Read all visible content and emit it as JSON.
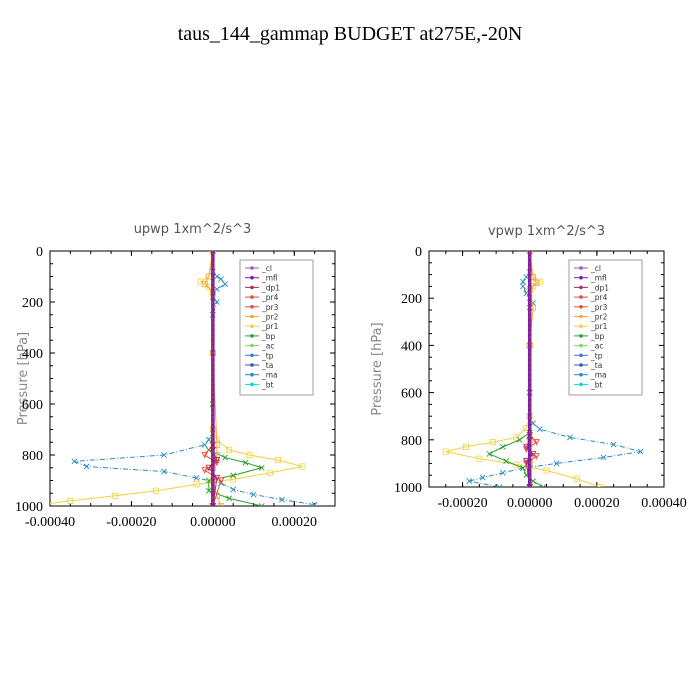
{
  "figure_title": "taus_144_gammap  BUDGET at275E,-20N",
  "colors": {
    "_cl": "#9b59b6",
    "_mfl": "#7b1fa2",
    "_dp1": "#b03060",
    "_pr4": "#e0503a",
    "_pr3": "#e74c3c",
    "_pr2": "#f2a93b",
    "_pr1": "#f4d03f",
    "_bp": "#2ca02c",
    "_ac": "#7ed957",
    "_tp": "#3a7bd5",
    "_ta": "#2f58c4",
    "_ma": "#2b8cbe",
    "_bt": "#00d5e5"
  },
  "chart_data": [
    {
      "type": "line",
      "title": "upwp   1xm^2/s^3",
      "ylabel": "Pressure [hPa]",
      "xlabel": "",
      "xlim": [
        -0.0004,
        0.0003
      ],
      "ylim": [
        1000,
        0
      ],
      "xticks": [
        -0.0004,
        -0.0002,
        0.0,
        0.0002
      ],
      "xtick_labels": [
        "-0.00040",
        "-0.00020",
        "0.00000",
        "0.00020"
      ],
      "yticks": [
        0,
        200,
        400,
        600,
        800,
        1000
      ],
      "ytick_labels": [
        "0",
        "200",
        "400",
        "600",
        "800",
        "1000"
      ],
      "legend_position": "upper-right",
      "legend": [
        "_cl",
        "_mfl",
        "_dp1",
        "_pr4",
        "_pr3",
        "_pr2",
        "_pr1",
        "_bp",
        "_ac",
        "_tp",
        "_ta",
        "_ma",
        "_bt"
      ],
      "series": [
        {
          "name": "_ma",
          "x": [
            0,
            0,
            1e-05,
            2e-05,
            3e-05,
            1e-05,
            0,
            1e-05,
            0,
            0,
            0,
            0,
            -1e-05,
            -2e-05,
            -0.00012,
            -0.00034,
            -0.00031,
            -0.00012,
            -4e-05,
            2e-05,
            5e-05,
            0.0001,
            0.00017,
            0.00025
          ],
          "y": [
            0,
            80,
            100,
            110,
            130,
            150,
            180,
            200,
            250,
            400,
            600,
            700,
            740,
            760,
            800,
            825,
            845,
            865,
            890,
            910,
            935,
            955,
            975,
            995
          ]
        },
        {
          "name": "_pr1",
          "x": [
            0,
            -1e-05,
            -3e-05,
            -1e-05,
            0,
            0,
            0,
            1e-05,
            4e-05,
            9e-05,
            0.00016,
            0.00022,
            0.00014,
            5e-05,
            -4e-05,
            -0.00014,
            -0.00024,
            -0.00035,
            -0.00045
          ],
          "y": [
            0,
            100,
            120,
            140,
            170,
            400,
            700,
            740,
            780,
            800,
            820,
            845,
            870,
            895,
            915,
            940,
            960,
            980,
            1000
          ]
        },
        {
          "name": "_bp",
          "x": [
            0,
            0,
            0,
            -1e-05,
            3e-05,
            8e-05,
            0.00012,
            5e-05,
            -1e-05,
            -1e-05,
            4e-05,
            0.00012
          ],
          "y": [
            0,
            600,
            760,
            780,
            810,
            830,
            850,
            880,
            900,
            940,
            970,
            1000
          ]
        },
        {
          "name": "_pr2",
          "x": [
            0,
            -1e-05,
            -2e-05,
            0,
            0,
            1e-05,
            1e-05,
            0,
            0,
            1e-05,
            2e-05
          ],
          "y": [
            0,
            100,
            130,
            160,
            400,
            760,
            800,
            850,
            900,
            960,
            1000
          ]
        },
        {
          "name": "_pr3",
          "x": [
            0,
            0,
            -2e-05,
            1e-05,
            -2e-05,
            2e-05,
            0
          ],
          "y": [
            0,
            760,
            800,
            830,
            860,
            900,
            1000
          ]
        },
        {
          "name": "_dp1",
          "x": [
            0,
            0,
            1e-05,
            -1e-05,
            1e-05,
            0
          ],
          "y": [
            0,
            780,
            820,
            850,
            890,
            1000
          ]
        },
        {
          "name": "_mfl",
          "x": [
            0,
            0
          ],
          "y": [
            0,
            1000
          ]
        }
      ]
    },
    {
      "type": "line",
      "title": "vpwp   1xm^2/s^3",
      "ylabel": "Pressure [hPa]",
      "xlabel": "",
      "xlim": [
        -0.0003,
        0.0004
      ],
      "ylim": [
        1000,
        0
      ],
      "xticks": [
        -0.0002,
        0.0,
        0.0002,
        0.0004
      ],
      "xtick_labels": [
        "-0.00020",
        "0.00000",
        "0.00020",
        "0.00040"
      ],
      "yticks": [
        0,
        200,
        400,
        600,
        800,
        1000
      ],
      "ytick_labels": [
        "0",
        "200",
        "400",
        "600",
        "800",
        "1000"
      ],
      "legend_position": "upper-right",
      "legend": [
        "_cl",
        "_mfl",
        "_dp1",
        "_pr4",
        "_pr3",
        "_pr2",
        "_pr1",
        "_bp",
        "_ac",
        "_tp",
        "_ta",
        "_ma",
        "_bt"
      ],
      "series": [
        {
          "name": "_ma",
          "x": [
            0,
            0,
            -1e-05,
            -2e-05,
            -2e-05,
            -1e-05,
            0,
            1e-05,
            0,
            0,
            0,
            0,
            1e-05,
            3e-05,
            0.00012,
            0.00025,
            0.00033,
            0.00022,
            8e-05,
            -2e-05,
            -8e-05,
            -0.00014,
            -0.00018,
            -9e-05
          ],
          "y": [
            0,
            90,
            110,
            130,
            150,
            180,
            200,
            220,
            240,
            400,
            600,
            700,
            730,
            755,
            790,
            820,
            850,
            875,
            900,
            920,
            940,
            960,
            975,
            1000
          ]
        },
        {
          "name": "_pr1",
          "x": [
            0,
            1e-05,
            3e-05,
            1e-05,
            0,
            0,
            0,
            -1e-05,
            -4e-05,
            -0.00011,
            -0.00019,
            -0.00025,
            -0.00015,
            -4e-05,
            5e-05,
            0.00014,
            0.00021
          ],
          "y": [
            0,
            110,
            130,
            150,
            170,
            400,
            700,
            750,
            790,
            810,
            830,
            850,
            880,
            905,
            930,
            965,
            1000
          ]
        },
        {
          "name": "_bp",
          "x": [
            0,
            0,
            0,
            -3e-05,
            -8e-05,
            -0.00012,
            -7e-05,
            -2e-05,
            -1e-05,
            1e-05,
            4e-05
          ],
          "y": [
            0,
            600,
            770,
            800,
            830,
            860,
            890,
            920,
            950,
            975,
            1000
          ]
        },
        {
          "name": "_pr2",
          "x": [
            0,
            1e-05,
            2e-05,
            0,
            1e-05,
            0,
            0,
            0,
            0
          ],
          "y": [
            0,
            110,
            135,
            160,
            240,
            400,
            800,
            900,
            1000
          ]
        },
        {
          "name": "_pr3",
          "x": [
            0,
            0,
            2e-05,
            -1e-05,
            2e-05,
            -1e-05,
            0
          ],
          "y": [
            0,
            780,
            810,
            840,
            870,
            900,
            1000
          ]
        },
        {
          "name": "_dp1",
          "x": [
            0,
            0,
            -1e-05,
            1e-05,
            -1e-05,
            0
          ],
          "y": [
            0,
            800,
            830,
            860,
            890,
            1000
          ]
        },
        {
          "name": "_mfl",
          "x": [
            0,
            0
          ],
          "y": [
            0,
            1000
          ]
        }
      ]
    }
  ]
}
